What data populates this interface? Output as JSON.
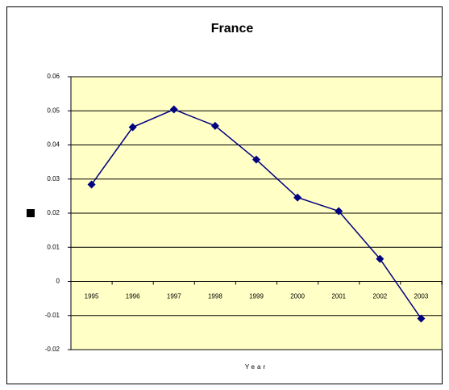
{
  "chart_data": {
    "type": "line",
    "title": "France",
    "x_label": "Year",
    "categories": [
      "1995",
      "1996",
      "1997",
      "1998",
      "1999",
      "2000",
      "2001",
      "2002",
      "2003"
    ],
    "values": [
      0.0284,
      0.0452,
      0.0504,
      0.0456,
      0.0357,
      0.0246,
      0.0206,
      0.0066,
      -0.0109
    ],
    "color": "#000080",
    "plot_background": "#ffffc6",
    "ylim": [
      -0.02,
      0.06
    ],
    "yticks": [
      -0.02,
      -0.01,
      0,
      0.01,
      0.02,
      0.03,
      0.04,
      0.05,
      0.06
    ],
    "grid": true
  }
}
